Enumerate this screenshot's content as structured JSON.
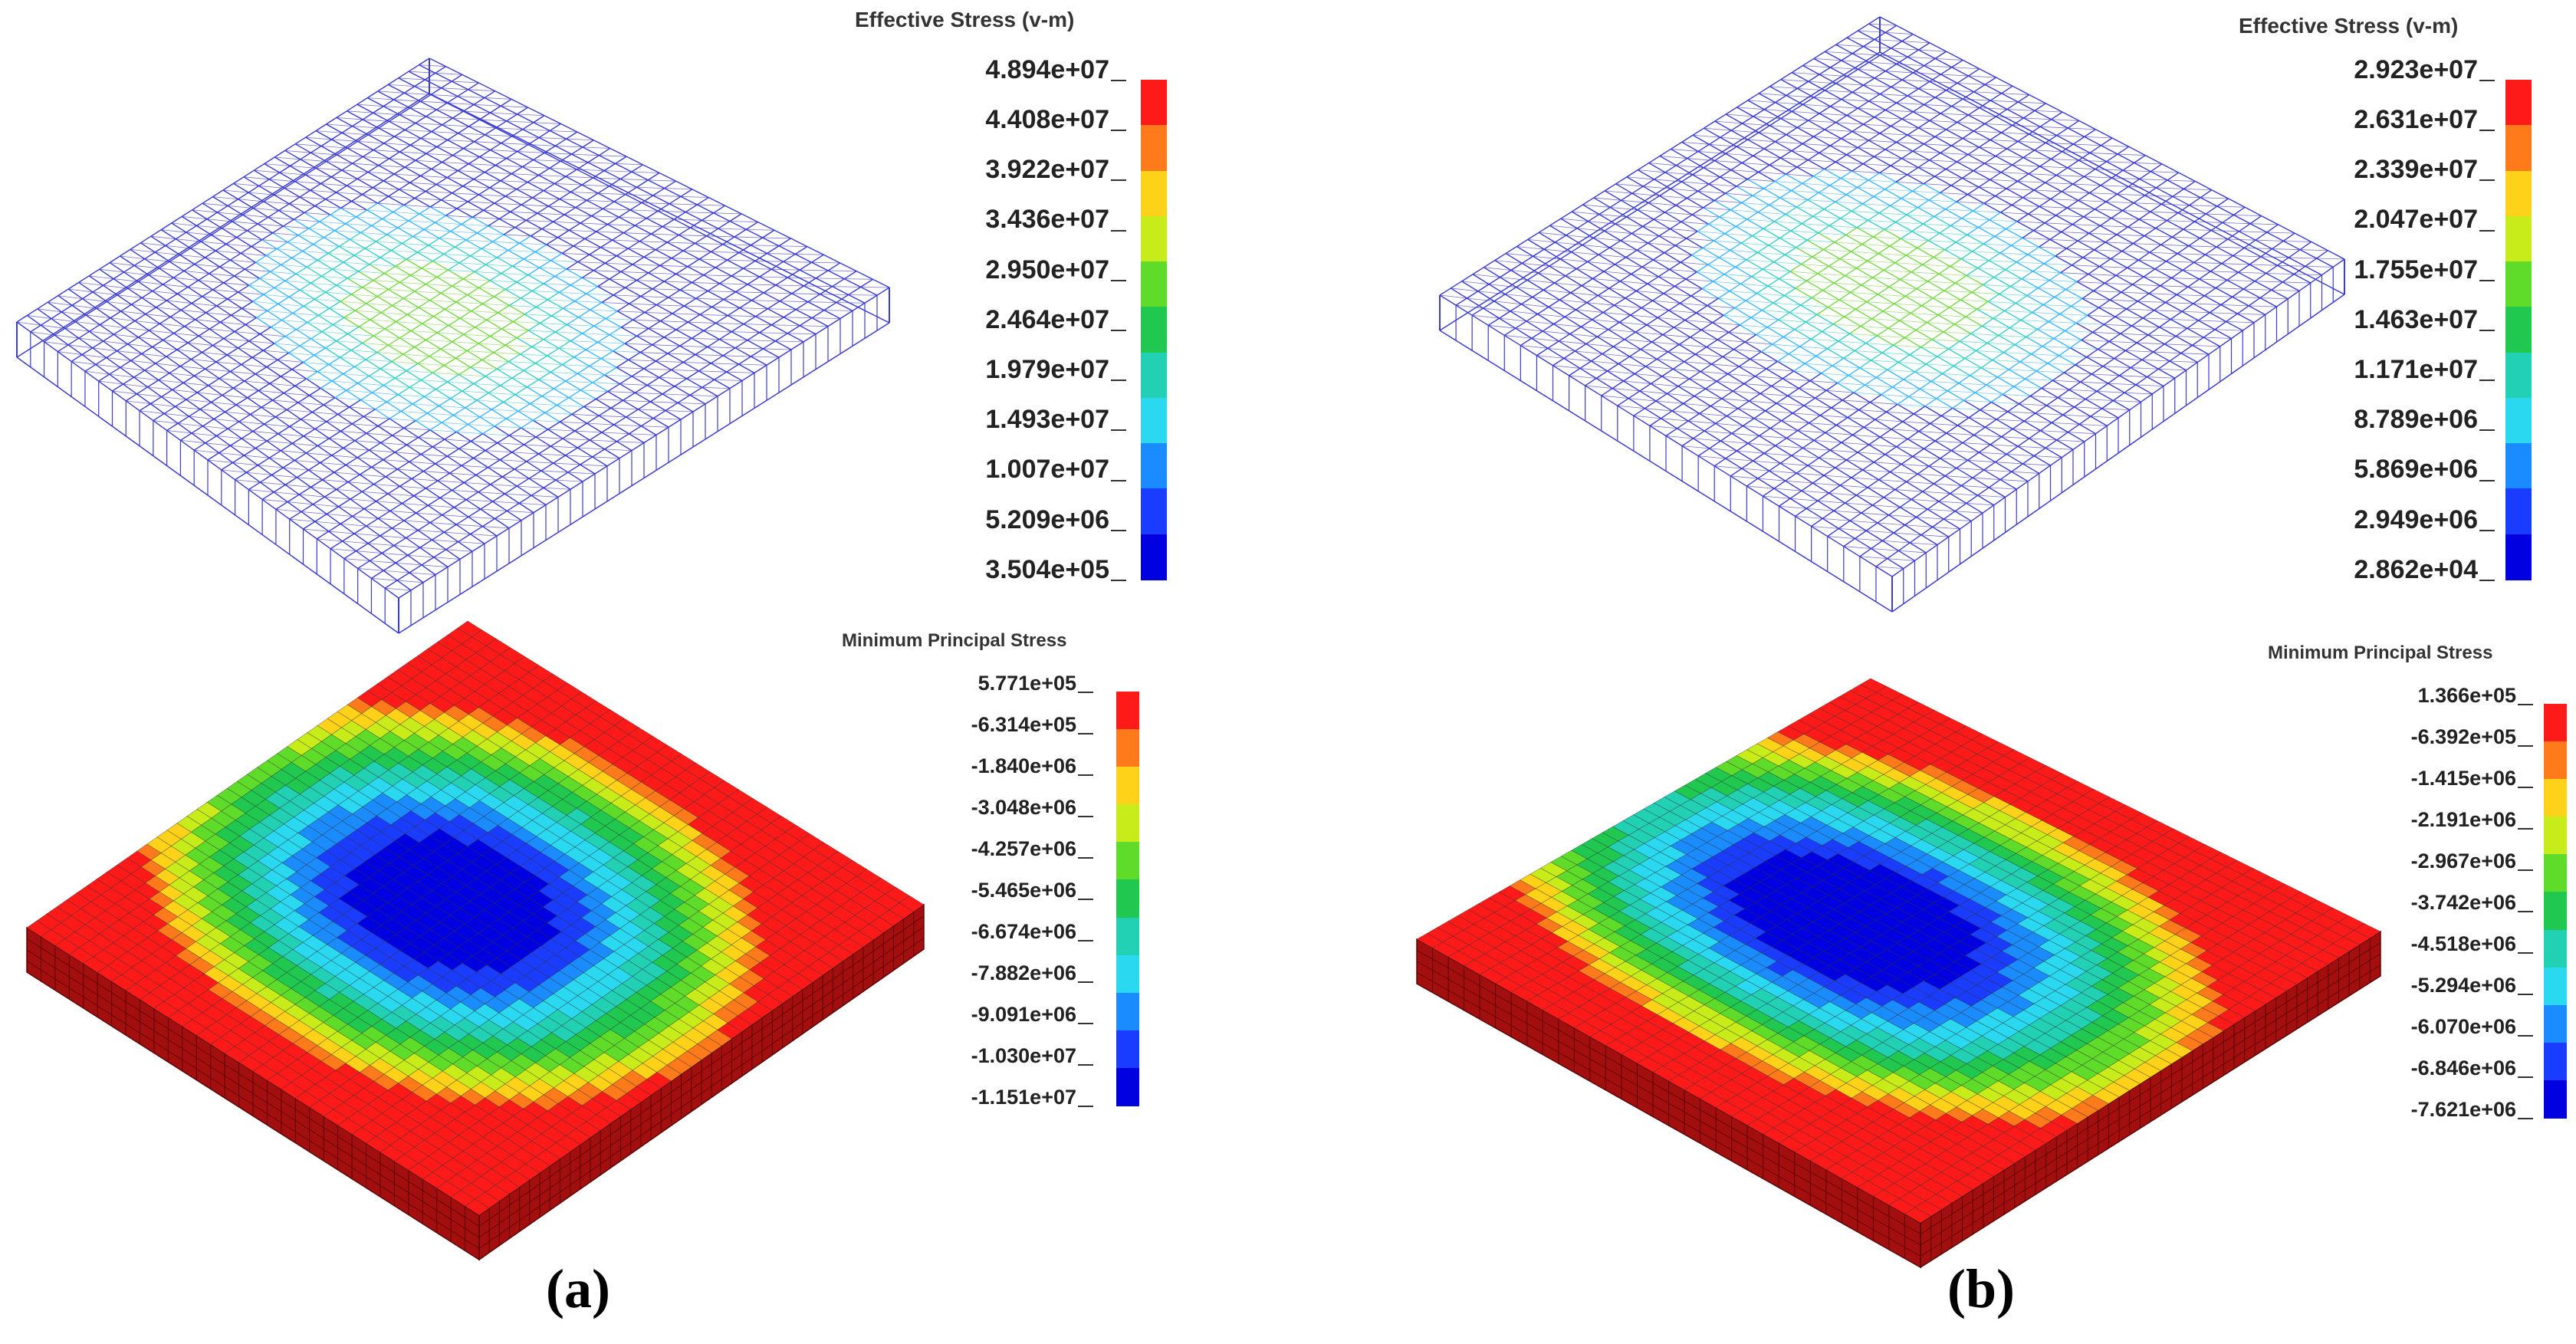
{
  "panels": [
    {
      "id": "a",
      "caption": "(a)",
      "plots": [
        {
          "kind": "wireframe",
          "legend_title": "Effective Stress (v-m)",
          "values": [
            "4.894e+07",
            "4.408e+07",
            "3.922e+07",
            "3.436e+07",
            "2.950e+07",
            "2.464e+07",
            "1.979e+07",
            "1.493e+07",
            "1.007e+07",
            "5.209e+06",
            "3.504e+05"
          ]
        },
        {
          "kind": "solid",
          "legend_title": "Minimum Principal Stress",
          "values": [
            "5.771e+05",
            "-6.314e+05",
            "-1.840e+06",
            "-3.048e+06",
            "-4.257e+06",
            "-5.465e+06",
            "-6.674e+06",
            "-7.882e+06",
            "-9.091e+06",
            "-1.030e+07",
            "-1.151e+07"
          ]
        }
      ]
    },
    {
      "id": "b",
      "caption": "(b)",
      "plots": [
        {
          "kind": "wireframe",
          "legend_title": "Effective Stress (v-m)",
          "values": [
            "2.923e+07",
            "2.631e+07",
            "2.339e+07",
            "2.047e+07",
            "1.755e+07",
            "1.463e+07",
            "1.171e+07",
            "8.789e+06",
            "5.869e+06",
            "2.949e+06",
            "2.862e+04"
          ]
        },
        {
          "kind": "solid",
          "legend_title": "Minimum Principal Stress",
          "values": [
            "1.366e+05",
            "-6.392e+05",
            "-1.415e+06",
            "-2.191e+06",
            "-2.967e+06",
            "-3.742e+06",
            "-4.518e+06",
            "-5.294e+06",
            "-6.070e+06",
            "-6.846e+06",
            "-7.621e+06"
          ]
        }
      ]
    }
  ],
  "colormap": [
    "#ff1a1a",
    "#ff7a1a",
    "#ffd21a",
    "#c8ec1a",
    "#5fdc2a",
    "#20c850",
    "#22d0b4",
    "#2ad8f0",
    "#1a8cff",
    "#1a3cff",
    "#0000e0"
  ],
  "colors": {
    "wire_blue": "#3c3ccf",
    "solid_red": "#a30f0f"
  }
}
